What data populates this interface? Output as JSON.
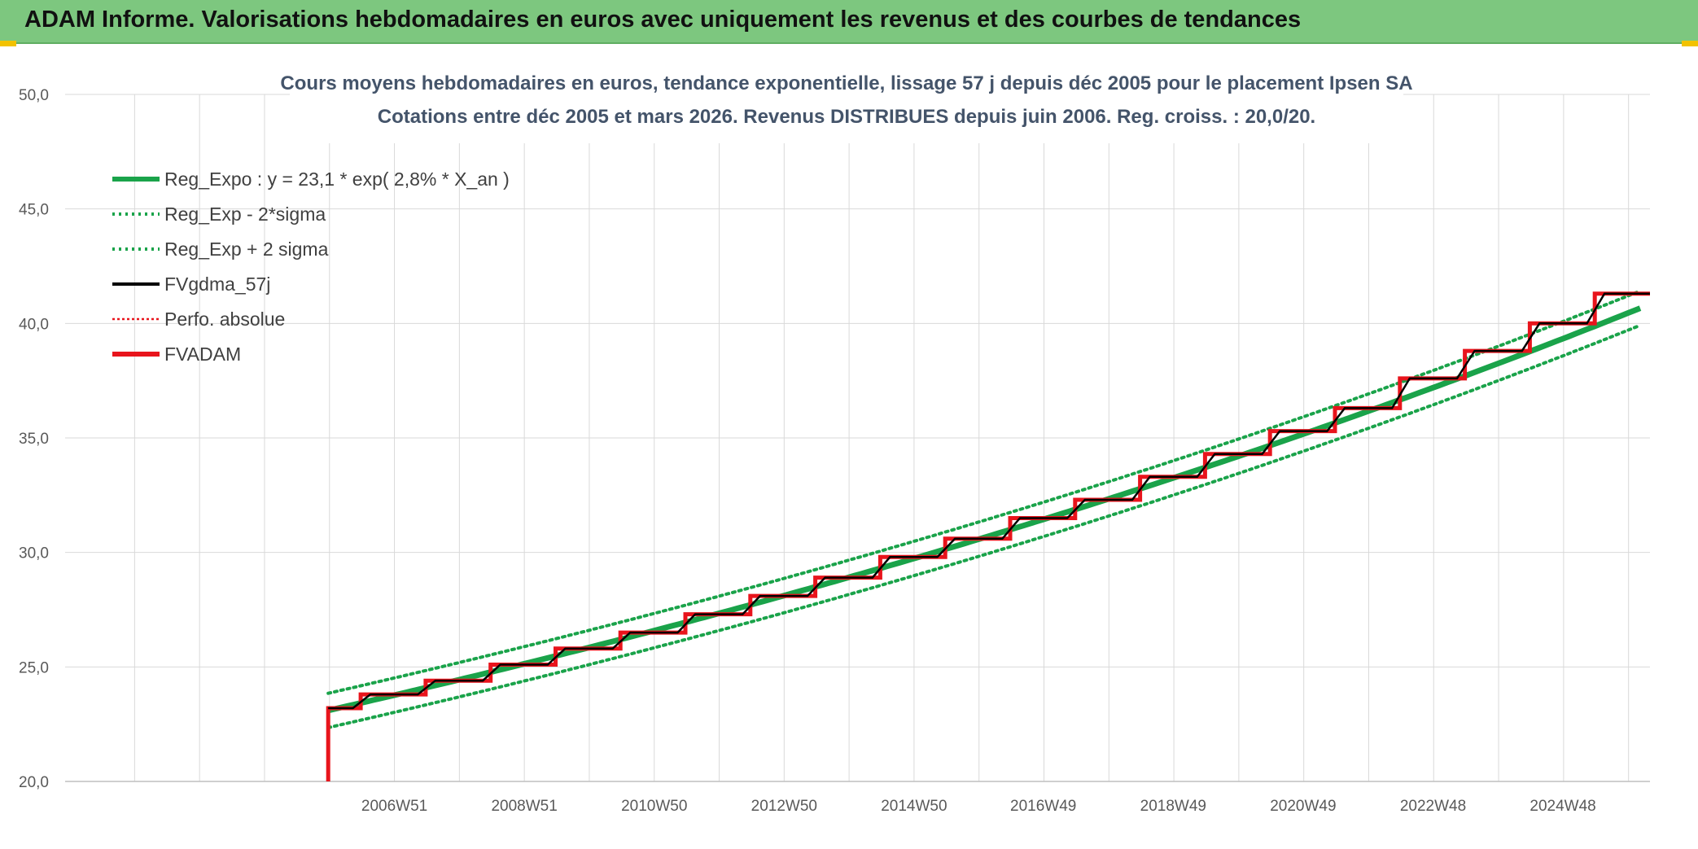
{
  "header": {
    "title": "ADAM Informe. Valorisations hebdomadaires en euros avec uniquement les revenus et des courbes de tendances"
  },
  "colors": {
    "header_bg": "#7dc77f",
    "regression": "#1aa34a",
    "smoothing": "#000000",
    "fvadam": "#e8141c"
  },
  "chart_data": {
    "type": "line",
    "title": "Cours moyens hebdomadaires en euros, tendance exponentielle, lissage 57 j depuis déc 2005 pour le placement Ipsen SA",
    "subtitle": "Cotations entre déc 2005 et mars 2026. Revenus DISTRIBUES depuis juin 2006. Reg. croiss. : 20,0/20.",
    "ylim": [
      20,
      50
    ],
    "yticks": [
      "20,0",
      "25,0",
      "30,0",
      "35,0",
      "40,0",
      "45,0",
      "50,0"
    ],
    "xlim": [
      2001.9,
      2026.3
    ],
    "xticks": [
      "2006W51",
      "2008W51",
      "2010W50",
      "2012W50",
      "2014W50",
      "2016W49",
      "2018W49",
      "2020W49",
      "2022W48",
      "2024W48"
    ],
    "xtick_years": [
      2006.97,
      2008.97,
      2010.97,
      2012.97,
      2014.97,
      2016.96,
      2018.96,
      2020.96,
      2022.96,
      2024.96
    ],
    "grid": true,
    "legend_position": "top-left",
    "legend": [
      "Reg_Expo : y = 23,1 * exp( 2,8% *  X_an )",
      "Reg_Exp - 2*sigma",
      "Reg_Exp + 2 sigma",
      "FVgdma_57j",
      "Perfo. absolue",
      "FVADAM"
    ],
    "regression": {
      "a": 23.1,
      "rate": 0.028,
      "start_year": 2005.95,
      "end_year": 2026.2,
      "band_offset": 0.75
    },
    "fvadam": {
      "x": [
        2005.95,
        2005.95,
        2006.45,
        2006.45,
        2007.45,
        2007.45,
        2008.45,
        2008.45,
        2009.45,
        2009.45,
        2010.45,
        2010.45,
        2011.45,
        2011.45,
        2012.45,
        2012.45,
        2013.45,
        2013.45,
        2014.45,
        2014.45,
        2015.45,
        2015.45,
        2016.45,
        2016.45,
        2017.45,
        2017.45,
        2018.45,
        2018.45,
        2019.45,
        2019.45,
        2020.45,
        2020.45,
        2021.45,
        2021.45,
        2022.45,
        2022.45,
        2023.45,
        2023.45,
        2024.45,
        2024.45,
        2025.45,
        2025.45,
        2026.3
      ],
      "y": [
        20.0,
        23.2,
        23.2,
        23.8,
        23.8,
        24.4,
        24.4,
        25.1,
        25.1,
        25.8,
        25.8,
        26.5,
        26.5,
        27.3,
        27.3,
        28.1,
        28.1,
        28.9,
        28.9,
        29.8,
        29.8,
        30.6,
        30.6,
        31.5,
        31.5,
        32.3,
        32.3,
        33.3,
        33.3,
        34.3,
        34.3,
        35.3,
        35.3,
        36.3,
        36.3,
        37.6,
        37.6,
        38.8,
        38.8,
        40.0,
        40.0,
        41.3,
        41.3
      ]
    }
  }
}
